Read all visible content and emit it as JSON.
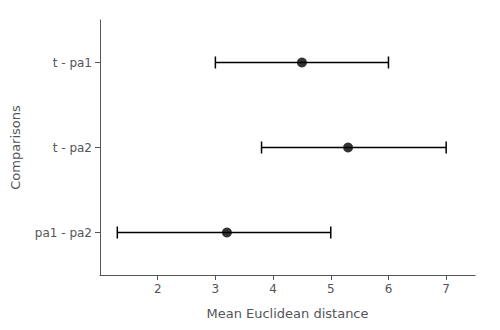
{
  "chart_data": {
    "type": "scatter",
    "categories": [
      "t - pa1",
      "t - pa2",
      "pa1 - pa2"
    ],
    "values": [
      4.5,
      5.3,
      3.2
    ],
    "lower": [
      3.0,
      3.8,
      1.3
    ],
    "upper": [
      6.0,
      7.0,
      5.0
    ],
    "xlabel": "Mean Euclidean distance",
    "ylabel": "Comparisons",
    "xlim": [
      1.0,
      7.5
    ],
    "xticks": [
      2,
      3,
      4,
      5,
      6,
      7
    ],
    "color": "#000000",
    "marker": "circle",
    "grid": false
  }
}
